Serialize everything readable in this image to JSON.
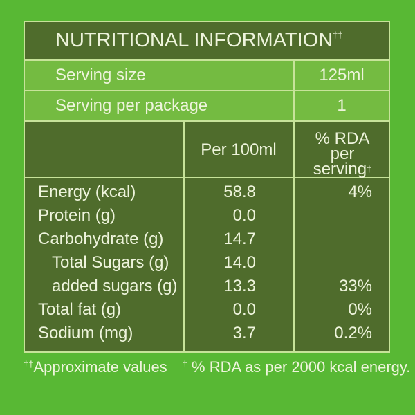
{
  "title": {
    "text": "NUTRITIONAL INFORMATION",
    "mark": "††"
  },
  "serving": [
    {
      "label": "Serving size",
      "value": "125ml"
    },
    {
      "label": "Serving per package",
      "value": "1"
    }
  ],
  "table": {
    "header": {
      "per_100ml": "Per 100ml",
      "rda": "% RDA per serving",
      "rda_mark": "†"
    },
    "rows": [
      {
        "label": "Energy (kcal)",
        "per_100ml": "58.8",
        "rda": "4%"
      },
      {
        "label": "Protein (g)",
        "per_100ml": "0.0"
      },
      {
        "label": "Carbohydrate (g)",
        "per_100ml": "14.7",
        "subrows": [
          {
            "label": "Total Sugars (g)",
            "per_100ml": "14.0"
          },
          {
            "label": "added sugars (g)",
            "per_100ml": "13.3",
            "rda": "33%"
          }
        ]
      },
      {
        "label": "Total fat (g)",
        "per_100ml": "0.0",
        "rda": "0%"
      },
      {
        "label": "Sodium (mg)",
        "per_100ml": "3.7",
        "rda": "0.2%"
      }
    ]
  },
  "footnotes": [
    {
      "mark": "††",
      "text": "Approximate values"
    },
    {
      "mark": "†",
      "text": "% RDA as per 2000 kcal energy."
    }
  ]
}
